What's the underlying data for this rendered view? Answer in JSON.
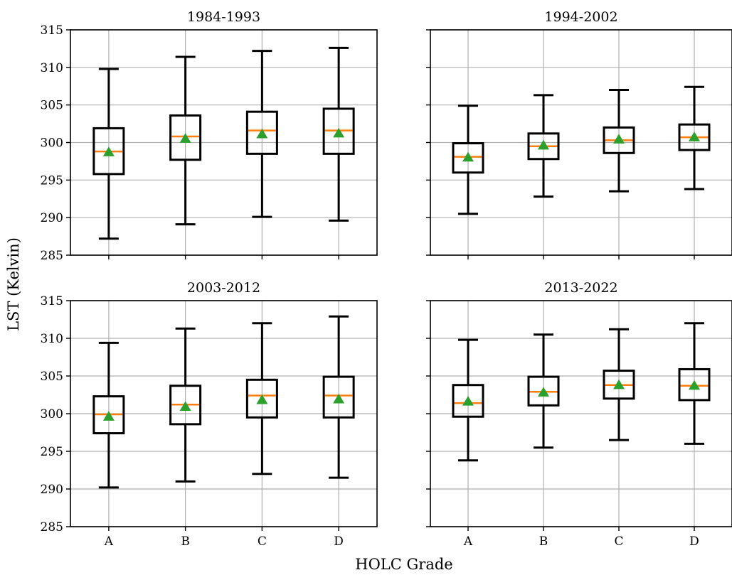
{
  "figure": {
    "ylabel": "LST (Kelvin)",
    "xlabel": "HOLC Grade"
  },
  "chart_data": [
    {
      "type": "box",
      "title": "1984-1993",
      "categories": [
        "A",
        "B",
        "C",
        "D"
      ],
      "ylim": [
        285,
        315
      ],
      "yticks": [
        285,
        290,
        295,
        300,
        305,
        310,
        315
      ],
      "grid": true,
      "boxes": [
        {
          "category": "A",
          "whisker_low": 287.2,
          "q1": 295.8,
          "median": 298.8,
          "q3": 301.9,
          "whisker_high": 309.8,
          "mean": 298.7
        },
        {
          "category": "B",
          "whisker_low": 289.1,
          "q1": 297.7,
          "median": 300.8,
          "q3": 303.6,
          "whisker_high": 311.4,
          "mean": 300.5
        },
        {
          "category": "C",
          "whisker_low": 290.1,
          "q1": 298.5,
          "median": 301.6,
          "q3": 304.1,
          "whisker_high": 312.2,
          "mean": 301.1
        },
        {
          "category": "D",
          "whisker_low": 289.6,
          "q1": 298.5,
          "median": 301.6,
          "q3": 304.5,
          "whisker_high": 312.6,
          "mean": 301.2
        }
      ]
    },
    {
      "type": "box",
      "title": "1994-2002",
      "categories": [
        "A",
        "B",
        "C",
        "D"
      ],
      "ylim": [
        285,
        315
      ],
      "yticks": [
        285,
        290,
        295,
        300,
        305,
        310,
        315
      ],
      "grid": true,
      "boxes": [
        {
          "category": "A",
          "whisker_low": 290.5,
          "q1": 296.0,
          "median": 298.1,
          "q3": 299.9,
          "whisker_high": 304.9,
          "mean": 298.0
        },
        {
          "category": "B",
          "whisker_low": 292.8,
          "q1": 297.8,
          "median": 299.5,
          "q3": 301.2,
          "whisker_high": 306.3,
          "mean": 299.6
        },
        {
          "category": "C",
          "whisker_low": 293.5,
          "q1": 298.6,
          "median": 300.3,
          "q3": 302.0,
          "whisker_high": 307.0,
          "mean": 300.4
        },
        {
          "category": "D",
          "whisker_low": 293.8,
          "q1": 299.0,
          "median": 300.7,
          "q3": 302.4,
          "whisker_high": 307.4,
          "mean": 300.7
        }
      ]
    },
    {
      "type": "box",
      "title": "2003-2012",
      "categories": [
        "A",
        "B",
        "C",
        "D"
      ],
      "ylim": [
        285,
        315
      ],
      "yticks": [
        285,
        290,
        295,
        300,
        305,
        310,
        315
      ],
      "grid": true,
      "boxes": [
        {
          "category": "A",
          "whisker_low": 290.2,
          "q1": 297.4,
          "median": 299.9,
          "q3": 302.3,
          "whisker_high": 309.4,
          "mean": 299.6
        },
        {
          "category": "B",
          "whisker_low": 291.0,
          "q1": 298.6,
          "median": 301.2,
          "q3": 303.7,
          "whisker_high": 311.3,
          "mean": 300.9
        },
        {
          "category": "C",
          "whisker_low": 292.0,
          "q1": 299.5,
          "median": 302.4,
          "q3": 304.5,
          "whisker_high": 312.0,
          "mean": 301.8
        },
        {
          "category": "D",
          "whisker_low": 291.5,
          "q1": 299.5,
          "median": 302.4,
          "q3": 304.9,
          "whisker_high": 312.9,
          "mean": 301.9
        }
      ]
    },
    {
      "type": "box",
      "title": "2013-2022",
      "categories": [
        "A",
        "B",
        "C",
        "D"
      ],
      "ylim": [
        285,
        315
      ],
      "yticks": [
        285,
        290,
        295,
        300,
        305,
        310,
        315
      ],
      "grid": true,
      "boxes": [
        {
          "category": "A",
          "whisker_low": 293.8,
          "q1": 299.6,
          "median": 301.4,
          "q3": 303.8,
          "whisker_high": 309.8,
          "mean": 301.6
        },
        {
          "category": "B",
          "whisker_low": 295.5,
          "q1": 301.1,
          "median": 302.9,
          "q3": 304.9,
          "whisker_high": 310.5,
          "mean": 302.8
        },
        {
          "category": "C",
          "whisker_low": 296.5,
          "q1": 302.0,
          "median": 303.8,
          "q3": 305.7,
          "whisker_high": 311.2,
          "mean": 303.8
        },
        {
          "category": "D",
          "whisker_low": 296.0,
          "q1": 301.8,
          "median": 303.7,
          "q3": 305.9,
          "whisker_high": 312.0,
          "mean": 303.7
        }
      ]
    }
  ],
  "style": {
    "box_color": "#000000",
    "median_color": "#ff7f0e",
    "mean_marker_color": "#2ca02c",
    "grid_color": "#b0b0b0"
  }
}
